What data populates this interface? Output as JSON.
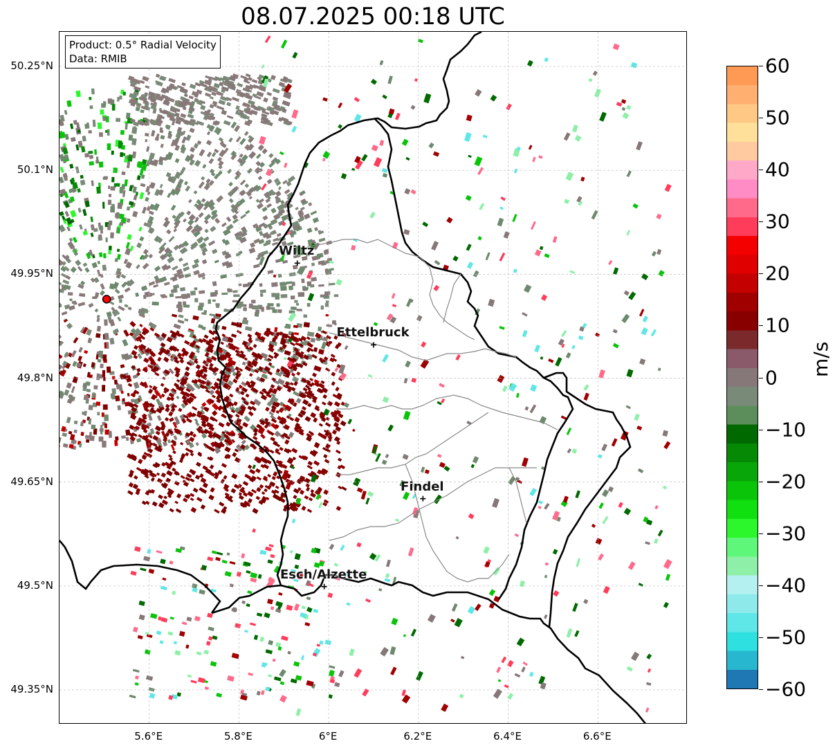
{
  "title": "08.07.2025 00:18 UTC",
  "info_box": {
    "product_line": "Product: 0.5° Radial Velocity",
    "data_line": "Data: RMIB"
  },
  "map": {
    "lat_labels": [
      "50.25°N",
      "50.1°N",
      "49.95°N",
      "49.8°N",
      "49.65°N",
      "49.5°N",
      "49.35°N"
    ],
    "lon_labels": [
      "5.6°E",
      "5.8°E",
      "6°E",
      "6.2°E",
      "6.4°E",
      "6.6°E"
    ],
    "lat_values": [
      50.25,
      50.1,
      49.95,
      49.8,
      49.65,
      49.5,
      49.35
    ],
    "lon_values": [
      5.6,
      5.8,
      6.0,
      6.2,
      6.4,
      6.6
    ],
    "extent": {
      "lon_min": 5.4,
      "lon_max": 6.8,
      "lat_min": 49.3,
      "lat_max": 50.3
    },
    "cities": [
      {
        "name": "Wiltz",
        "lon": 5.93,
        "lat": 49.966
      },
      {
        "name": "Ettelbruck",
        "lon": 6.1,
        "lat": 49.848
      },
      {
        "name": "Findel",
        "lon": 6.21,
        "lat": 49.626
      },
      {
        "name": "Esch/Alzette",
        "lon": 5.99,
        "lat": 49.499
      }
    ],
    "radar_site": {
      "lon": 5.505,
      "lat": 49.914
    },
    "grid": true
  },
  "colorbar": {
    "unit": "m/s",
    "ticks": [
      "60",
      "50",
      "40",
      "30",
      "20",
      "10",
      "0",
      "−10",
      "−20",
      "−30",
      "−40",
      "−50",
      "−60"
    ],
    "min": -60,
    "max": 60,
    "colors": [
      "#1f78b4",
      "#27b8cf",
      "#2ee0e0",
      "#5fe6e6",
      "#8eeaea",
      "#b4f0f0",
      "#8ef0a8",
      "#5ef77a",
      "#2cf72c",
      "#10e010",
      "#0ac40a",
      "#08a608",
      "#068a06",
      "#006a00",
      "#5c8e5c",
      "#7a8a78",
      "#867878",
      "#8a5a6a",
      "#7a2a2a",
      "#880000",
      "#a00000",
      "#c40000",
      "#e00000",
      "#f50000",
      "#ff3c5a",
      "#ff6a8a",
      "#ff8cc4",
      "#ffa8c8",
      "#ffcaa0",
      "#ffe09a",
      "#ffc884",
      "#ffb070",
      "#ff9a55"
    ]
  }
}
